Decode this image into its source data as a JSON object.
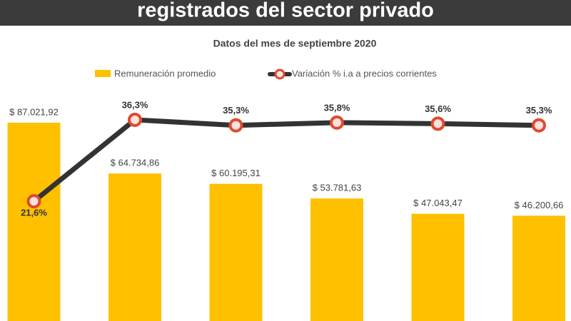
{
  "chart_data": {
    "type": "bar",
    "title": "registrados del sector privado",
    "subtitle": "Datos del mes de septiembre 2020",
    "categories": [
      null,
      null,
      null,
      null,
      null,
      null
    ],
    "ylim": [
      0,
      90000
    ],
    "y2lim": [
      0,
      37
    ],
    "series": [
      {
        "name": "Remuneración promedio",
        "type": "bar",
        "color": "#ffc000",
        "values": [
          87021.92,
          64734.86,
          60195.31,
          53781.63,
          47043.47,
          46200.66
        ],
        "value_labels": [
          "$ 87.021,92",
          "$ 64.734,86",
          "$ 60.195,31",
          "$ 53.781,63",
          "$ 47.043,47",
          "$ 46.200,66"
        ]
      },
      {
        "name": "Variación % i.a a precios corrientes",
        "type": "line",
        "axis": "y2",
        "color": "#333333",
        "marker_color": "#e04a30",
        "values": [
          21.6,
          36.3,
          35.3,
          35.8,
          35.6,
          35.3
        ],
        "value_labels": [
          "21,6%",
          "36,3%",
          "35,3%",
          "35,8%",
          "35,6%",
          "35,3%"
        ]
      }
    ]
  }
}
